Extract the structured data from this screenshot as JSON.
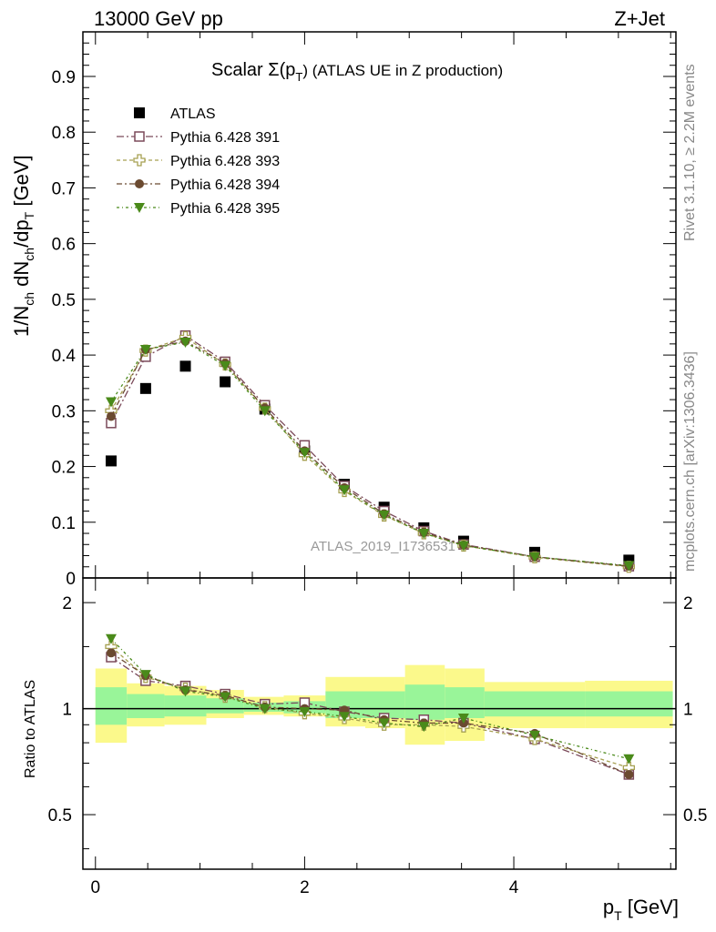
{
  "header": {
    "left": "13000 GeV pp",
    "right": "Z+Jet"
  },
  "side": {
    "rivet": "Rivet 3.1.10, ≥ 2.2M events",
    "mcplots": "mcplots.cern.ch [arXiv:1306.3436]"
  },
  "chart_data": {
    "type": "scatter",
    "title_main": "Scalar Σ(p",
    "title_sub": "T",
    "title_tail": ") (ATLAS UE in Z production)",
    "analysis_id": "ATLAS_2019_I1736531",
    "ylabel": "1/N_ch dN_ch/dp_T [GeV]",
    "ratio_ylabel": "Ratio to ATLAS",
    "xlabel": "p_T [GeV]",
    "xlim": [
      -0.12,
      5.55
    ],
    "ylim": [
      0,
      0.98
    ],
    "ratio_ylim": [
      0.35,
      2.35
    ],
    "main_yticks": [
      "0",
      "0.1",
      "0.2",
      "0.3",
      "0.4",
      "0.5",
      "0.6",
      "0.7",
      "0.8",
      "0.9"
    ],
    "ratio_yticks": [
      "0.5",
      "1",
      "2"
    ],
    "xticks": [
      "0",
      "2",
      "4"
    ],
    "x": [
      0.15,
      0.48,
      0.86,
      1.24,
      1.62,
      2.0,
      2.38,
      2.76,
      3.14,
      3.52,
      4.2,
      5.1
    ],
    "bins": [
      [
        0.0,
        0.3
      ],
      [
        0.3,
        0.66
      ],
      [
        0.66,
        1.06
      ],
      [
        1.06,
        1.42
      ],
      [
        1.42,
        1.8
      ],
      [
        1.8,
        2.2
      ],
      [
        2.2,
        2.58
      ],
      [
        2.58,
        2.96
      ],
      [
        2.96,
        3.34
      ],
      [
        3.34,
        3.72
      ],
      [
        3.72,
        4.68
      ],
      [
        4.68,
        5.52
      ]
    ],
    "band_stat": [
      [
        0.9,
        1.15
      ],
      [
        0.94,
        1.1
      ],
      [
        0.95,
        1.09
      ],
      [
        0.97,
        1.07
      ],
      [
        0.98,
        1.04
      ],
      [
        0.97,
        1.05
      ],
      [
        0.94,
        1.12
      ],
      [
        0.94,
        1.12
      ],
      [
        0.93,
        1.17
      ],
      [
        0.94,
        1.15
      ],
      [
        0.95,
        1.12
      ],
      [
        0.95,
        1.12
      ]
    ],
    "band_total": [
      [
        0.8,
        1.3
      ],
      [
        0.89,
        1.18
      ],
      [
        0.9,
        1.16
      ],
      [
        0.94,
        1.13
      ],
      [
        0.96,
        1.08
      ],
      [
        0.95,
        1.09
      ],
      [
        0.89,
        1.23
      ],
      [
        0.88,
        1.23
      ],
      [
        0.79,
        1.33
      ],
      [
        0.81,
        1.3
      ],
      [
        0.88,
        1.19
      ],
      [
        0.88,
        1.2
      ]
    ],
    "series": [
      {
        "name": "ATLAS",
        "color": "#000000",
        "marker": "square-filled",
        "values": [
          0.21,
          0.34,
          0.38,
          0.352,
          0.303,
          0.228,
          0.168,
          0.127,
          0.09,
          0.066,
          0.046,
          0.032
        ],
        "ratio": [
          1,
          1,
          1,
          1,
          1,
          1,
          1,
          1,
          1,
          1,
          1,
          1
        ]
      },
      {
        "name": "Pythia 6.428 391",
        "color": "#7b4a5a",
        "marker": "square-open",
        "dash": "8 3 2 3",
        "values": [
          0.278,
          0.397,
          0.435,
          0.388,
          0.31,
          0.238,
          0.165,
          0.12,
          0.084,
          0.06,
          0.038,
          0.021
        ],
        "ratio": [
          1.4,
          1.2,
          1.16,
          1.1,
          1.03,
          1.04,
          0.98,
          0.94,
          0.93,
          0.91,
          0.82,
          0.65
        ]
      },
      {
        "name": "Pythia 6.428 393",
        "color": "#a6a052",
        "marker": "cross-open",
        "dash": "4 3",
        "values": [
          0.3,
          0.408,
          0.432,
          0.383,
          0.304,
          0.221,
          0.156,
          0.112,
          0.08,
          0.058,
          0.037,
          0.02
        ],
        "ratio": [
          1.5,
          1.23,
          1.14,
          1.08,
          1.01,
          0.97,
          0.94,
          0.9,
          0.9,
          0.89,
          0.82,
          0.68
        ]
      },
      {
        "name": "Pythia 6.428 394",
        "color": "#6b4a30",
        "marker": "circle-filled",
        "dash": "6 3 2 3",
        "values": [
          0.29,
          0.41,
          0.425,
          0.385,
          0.305,
          0.228,
          0.162,
          0.115,
          0.082,
          0.059,
          0.038,
          0.021
        ],
        "ratio": [
          1.44,
          1.24,
          1.13,
          1.09,
          1.01,
          1.0,
          0.99,
          0.93,
          0.91,
          0.91,
          0.85,
          0.65
        ]
      },
      {
        "name": "Pythia 6.428 395",
        "color": "#4a8a1a",
        "marker": "triangle-down",
        "dash": "3 3 1 3",
        "values": [
          0.316,
          0.41,
          0.423,
          0.381,
          0.3,
          0.225,
          0.158,
          0.113,
          0.08,
          0.058,
          0.038,
          0.022
        ],
        "ratio": [
          1.58,
          1.25,
          1.12,
          1.08,
          1.0,
          0.98,
          0.95,
          0.91,
          0.89,
          0.94,
          0.84,
          0.72
        ]
      }
    ],
    "band_colors": {
      "stat": "#99f599",
      "total": "#fbf98b"
    }
  }
}
